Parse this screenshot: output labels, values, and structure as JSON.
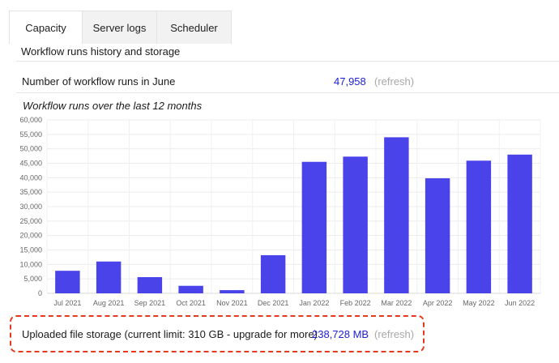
{
  "tabs": [
    {
      "label": "Capacity",
      "active": true
    },
    {
      "label": "Server logs",
      "active": false
    },
    {
      "label": "Scheduler",
      "active": false
    }
  ],
  "section_title": "Workflow runs history and storage",
  "runs_row": {
    "label": "Number of workflow runs in June",
    "value": "47,958",
    "refresh": "(refresh)"
  },
  "chart_title": "Workflow runs over the last 12 months",
  "storage_row": {
    "label": "Uploaded file storage (current limit: 310 GB - upgrade for more)",
    "value": "238,728 MB",
    "refresh": "(refresh)"
  },
  "colors": {
    "bar": "#4a43ea",
    "value_link": "#2020d0",
    "annotation": "#e63a1f"
  },
  "chart_data": {
    "type": "bar",
    "categories": [
      "Jul 2021",
      "Aug 2021",
      "Sep 2021",
      "Oct 2021",
      "Nov 2021",
      "Dec 2021",
      "Jan 2022",
      "Feb 2022",
      "Mar 2022",
      "Apr 2022",
      "May 2022",
      "Jun 2022"
    ],
    "values": [
      7800,
      11000,
      5600,
      2600,
      1100,
      13200,
      45500,
      47300,
      54000,
      39800,
      45900,
      48000
    ],
    "yticks": [
      "0",
      "5,000",
      "10,000",
      "15,000",
      "20,000",
      "25,000",
      "30,000",
      "35,000",
      "40,000",
      "45,000",
      "50,000",
      "55,000",
      "60,000"
    ],
    "ylim": [
      0,
      60000
    ],
    "grid": true,
    "title": "",
    "xlabel": "",
    "ylabel": ""
  }
}
